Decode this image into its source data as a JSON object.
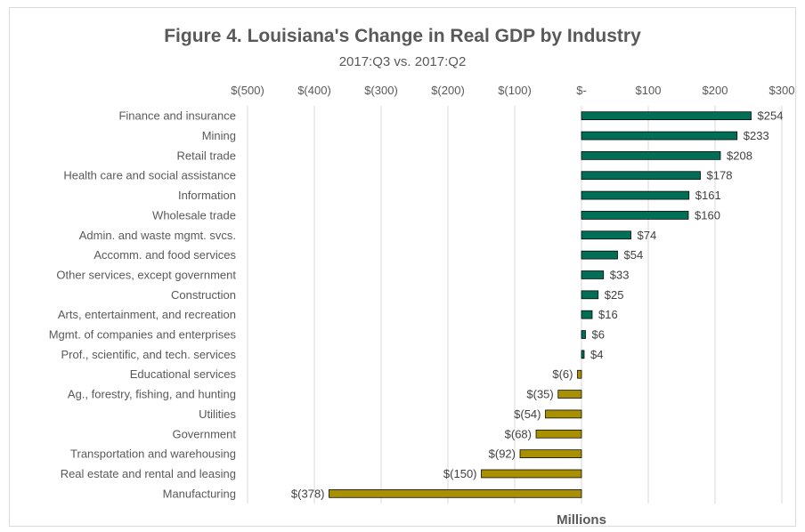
{
  "chart_data": {
    "type": "bar",
    "orientation": "horizontal",
    "title": "Figure 4. Louisiana's  Change in Real GDP by Industry",
    "subtitle": "2017:Q3 vs. 2017:Q2",
    "xlabel": "Millions",
    "xlim": [
      -500,
      300
    ],
    "ticks": [
      {
        "value": -500,
        "label": "$(500)"
      },
      {
        "value": -400,
        "label": "$(400)"
      },
      {
        "value": -300,
        "label": "$(300)"
      },
      {
        "value": -200,
        "label": "$(200)"
      },
      {
        "value": -100,
        "label": "$(100)"
      },
      {
        "value": 0,
        "label": "$-"
      },
      {
        "value": 100,
        "label": "$100"
      },
      {
        "value": 200,
        "label": "$200"
      },
      {
        "value": 300,
        "label": "$300"
      }
    ],
    "grid": true,
    "legend": "none",
    "colors": {
      "positive": "#006f55",
      "negative": "#a89000",
      "outline": "#000000",
      "grid": "#d9d9d9"
    },
    "categories": [
      "Finance and insurance",
      "Mining",
      "Retail trade",
      "Health care and social assistance",
      "Information",
      "Wholesale trade",
      "Admin. and waste mgmt. svcs.",
      "Accomm. and food services",
      "Other services, except government",
      "Construction",
      "Arts, entertainment, and recreation",
      "Mgmt. of companies and enterprises",
      "Prof., scientific, and tech. services",
      "Educational services",
      "Ag., forestry, fishing, and hunting",
      "Utilities",
      "Government",
      "Transportation and warehousing",
      "Real estate and rental and leasing",
      "Manufacturing"
    ],
    "values": [
      254,
      233,
      208,
      178,
      161,
      160,
      74,
      54,
      33,
      25,
      16,
      6,
      4,
      -6,
      -35,
      -54,
      -68,
      -92,
      -150,
      -378
    ],
    "data_labels": [
      "$254",
      "$233",
      "$208",
      "$178",
      "$161",
      "$160",
      "$74",
      "$54",
      "$33",
      "$25",
      "$16",
      "$6",
      "$4",
      "$(6)",
      "$(35)",
      "$(54)",
      "$(68)",
      "$(92)",
      "$(150)",
      "$(378)"
    ]
  }
}
